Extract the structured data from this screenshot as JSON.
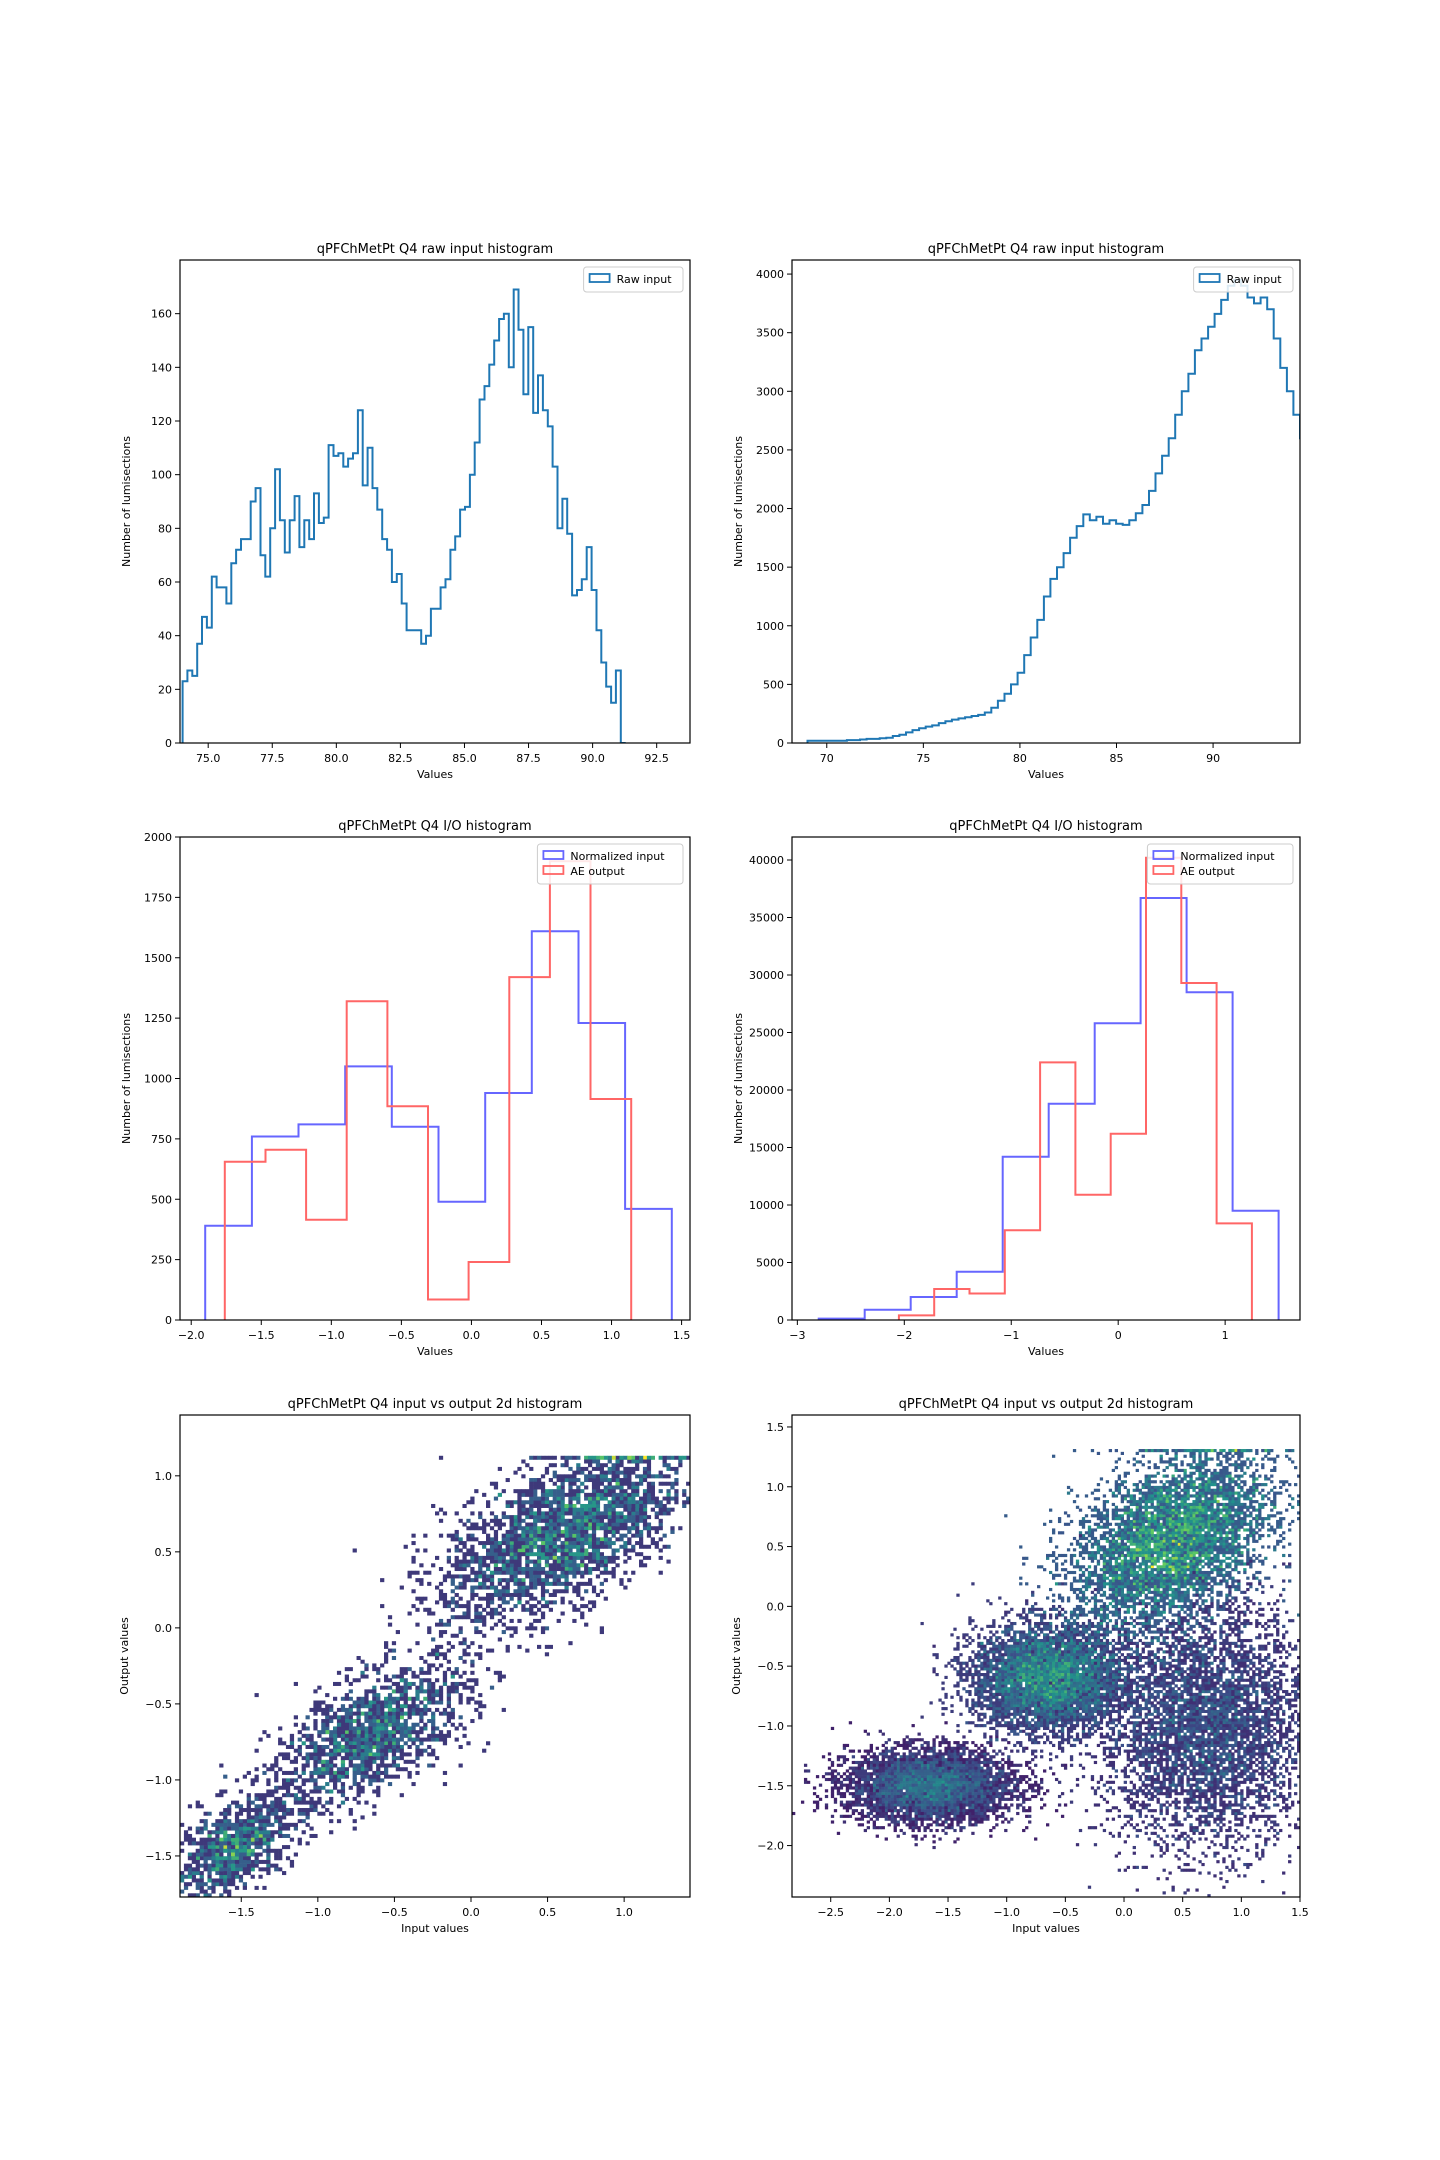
{
  "chart_data": [
    {
      "type": "histogram-step",
      "title": "qPFChMetPt Q4 raw input histogram",
      "xlabel": "Values",
      "ylabel": "Number of lumisections",
      "xlim": [
        73.9,
        93.8
      ],
      "ylim": [
        0,
        180
      ],
      "xticks": [
        75.0,
        77.5,
        80.0,
        82.5,
        85.0,
        87.5,
        90.0,
        92.5
      ],
      "xtick_labels": [
        "75.0",
        "77.5",
        "80.0",
        "82.5",
        "85.0",
        "87.5",
        "90.0",
        "92.5"
      ],
      "yticks": [
        0,
        20,
        40,
        60,
        80,
        100,
        120,
        140,
        160
      ],
      "legend_position": "upper right",
      "series": [
        {
          "name": "Raw input",
          "color": "#1f77b4",
          "bin_start": 74.0,
          "bin_width": 0.19,
          "values": [
            23,
            27,
            25,
            37,
            47,
            43,
            62,
            58,
            58,
            52,
            67,
            72,
            76,
            76,
            90,
            95,
            70,
            62,
            80,
            102,
            83,
            71,
            83,
            92,
            73,
            83,
            76,
            93,
            82,
            84,
            111,
            107,
            108,
            103,
            106,
            108,
            124,
            96,
            110,
            95,
            87,
            76,
            72,
            60,
            63,
            52,
            42,
            42,
            42,
            37,
            40,
            50,
            50,
            58,
            61,
            72,
            77,
            87,
            88,
            100,
            112,
            128,
            133,
            141,
            150,
            158,
            160,
            140,
            169,
            154,
            130,
            155,
            123,
            137,
            124,
            118,
            103,
            80,
            91,
            78,
            55,
            57,
            61,
            73,
            57,
            42,
            30,
            21,
            15,
            27,
            0
          ]
        }
      ]
    },
    {
      "type": "histogram-step",
      "title": "qPFChMetPt Q4 raw input histogram",
      "xlabel": "Values",
      "ylabel": "Number of lumisections",
      "xlim": [
        68.2,
        94.5
      ],
      "ylim": [
        0,
        4120
      ],
      "xticks": [
        70,
        75,
        80,
        85,
        90
      ],
      "xtick_labels": [
        "70",
        "75",
        "80",
        "85",
        "90"
      ],
      "yticks": [
        0,
        500,
        1000,
        1500,
        2000,
        2500,
        3000,
        3500,
        4000
      ],
      "legend_position": "upper right",
      "series": [
        {
          "name": "Raw input",
          "color": "#1f77b4",
          "bin_start": 69.0,
          "bin_width": 0.34,
          "values": [
            20,
            20,
            20,
            20,
            20,
            20,
            25,
            25,
            30,
            35,
            35,
            40,
            45,
            60,
            70,
            90,
            110,
            125,
            140,
            150,
            170,
            185,
            200,
            210,
            220,
            230,
            240,
            260,
            300,
            360,
            420,
            500,
            600,
            750,
            900,
            1050,
            1250,
            1400,
            1500,
            1620,
            1750,
            1850,
            1950,
            1900,
            1930,
            1870,
            1900,
            1870,
            1860,
            1900,
            1960,
            2030,
            2150,
            2300,
            2450,
            2600,
            2800,
            3000,
            3150,
            3350,
            3450,
            3550,
            3660,
            3780,
            3900,
            3950,
            3900,
            3800,
            3750,
            3800,
            3700,
            3450,
            3200,
            3000,
            2800,
            2600,
            2250,
            2100,
            1880,
            1650,
            1350,
            1170,
            1000,
            800,
            650,
            520,
            390,
            0
          ]
        }
      ]
    },
    {
      "type": "histogram-step",
      "title": "qPFChMetPt Q4 I/O histogram",
      "xlabel": "Values",
      "ylabel": "Number of lumisections",
      "xlim": [
        -2.08,
        1.56
      ],
      "ylim": [
        0,
        2000
      ],
      "xticks": [
        -2.0,
        -1.5,
        -1.0,
        -0.5,
        0.0,
        0.5,
        1.0,
        1.5
      ],
      "xtick_labels": [
        "−2.0",
        "−1.5",
        "−1.0",
        "−0.5",
        "0.0",
        "0.5",
        "1.0",
        "1.5"
      ],
      "yticks": [
        0,
        250,
        500,
        750,
        1000,
        1250,
        1500,
        1750,
        2000
      ],
      "legend_position": "upper right",
      "series": [
        {
          "name": "Normalized input",
          "color": "#6666ff",
          "edges": [
            -1.9,
            -1.567,
            -1.234,
            -0.901,
            -0.568,
            -0.235,
            0.098,
            0.431,
            0.764,
            1.097,
            1.43
          ],
          "values": [
            390,
            760,
            810,
            1050,
            800,
            490,
            940,
            1610,
            1230,
            460
          ]
        },
        {
          "name": "AE output",
          "color": "#ff6666",
          "edges": [
            -1.76,
            -1.47,
            -1.18,
            -0.89,
            -0.6,
            -0.31,
            -0.02,
            0.27,
            0.56,
            0.85,
            1.14
          ],
          "values": [
            655,
            705,
            415,
            1320,
            885,
            85,
            240,
            1420,
            1900,
            915
          ]
        }
      ]
    },
    {
      "type": "histogram-step",
      "title": "qPFChMetPt Q4 I/O histogram",
      "xlabel": "Values",
      "ylabel": "Number of lumisections",
      "xlim": [
        -3.05,
        1.7
      ],
      "ylim": [
        0,
        42000
      ],
      "xticks": [
        -3,
        -2,
        -1,
        0,
        1
      ],
      "xtick_labels": [
        "−3",
        "−2",
        "−1",
        "0",
        "1"
      ],
      "yticks": [
        0,
        5000,
        10000,
        15000,
        20000,
        25000,
        30000,
        35000,
        40000
      ],
      "legend_position": "upper right",
      "series": [
        {
          "name": "Normalized input",
          "color": "#6666ff",
          "edges": [
            -2.8,
            -2.37,
            -1.94,
            -1.51,
            -1.08,
            -0.65,
            -0.22,
            0.21,
            0.64,
            1.07,
            1.5
          ],
          "values": [
            120,
            900,
            2000,
            4200,
            14200,
            18800,
            25800,
            36700,
            28500,
            9500
          ]
        },
        {
          "name": "AE output",
          "color": "#ff6666",
          "edges": [
            -2.05,
            -1.72,
            -1.39,
            -1.06,
            -0.73,
            -0.4,
            -0.07,
            0.26,
            0.59,
            0.92,
            1.25
          ],
          "values": [
            400,
            2700,
            2300,
            7800,
            22400,
            10900,
            16200,
            40200,
            29300,
            8400
          ]
        }
      ]
    },
    {
      "type": "heatmap",
      "title": "qPFChMetPt Q4 input vs output 2d histogram",
      "xlabel": "Input values",
      "ylabel": "Output values",
      "xlim": [
        -1.9,
        1.43
      ],
      "ylim": [
        -1.77,
        1.4
      ],
      "xticks": [
        -1.5,
        -1.0,
        -0.5,
        0.0,
        0.5,
        1.0
      ],
      "xtick_labels": [
        "−1.5",
        "−1.0",
        "−0.5",
        "0.0",
        "0.5",
        "1.0"
      ],
      "yticks": [
        -1.5,
        -1.0,
        -0.5,
        0.0,
        0.5,
        1.0
      ],
      "ytick_labels": [
        "−1.5",
        "−1.0",
        "−0.5",
        "0.0",
        "0.5",
        "1.0"
      ],
      "colormap": "viridis",
      "clusters": [
        {
          "x": -1.55,
          "y": -1.45,
          "sx": 0.2,
          "sy": 0.14,
          "weight": 0.18
        },
        {
          "x": -0.65,
          "y": -0.7,
          "sx": 0.32,
          "sy": 0.19,
          "weight": 0.3
        },
        {
          "x": 0.6,
          "y": 0.62,
          "sx": 0.4,
          "sy": 0.24,
          "weight": 0.52
        }
      ]
    },
    {
      "type": "heatmap",
      "title": "qPFChMetPt Q4 input vs output 2d histogram",
      "xlabel": "Input values",
      "ylabel": "Output values",
      "xlim": [
        -2.83,
        1.5
      ],
      "ylim": [
        -2.43,
        1.6
      ],
      "xticks": [
        -2.5,
        -2.0,
        -1.5,
        -1.0,
        -0.5,
        0.0,
        0.5,
        1.0,
        1.5
      ],
      "xtick_labels": [
        "−2.5",
        "−2.0",
        "−1.5",
        "−1.0",
        "−0.5",
        "0.0",
        "0.5",
        "1.0",
        "1.5"
      ],
      "yticks": [
        -2.0,
        -1.5,
        -1.0,
        -0.5,
        0.0,
        0.5,
        1.0,
        1.5
      ],
      "ytick_labels": [
        "−2.0",
        "−1.5",
        "−1.0",
        "−0.5",
        "0.0",
        "0.5",
        "1.0",
        "1.5"
      ],
      "colormap": "viridis",
      "clusters": [
        {
          "x": -1.65,
          "y": -1.5,
          "sx": 0.35,
          "sy": 0.15,
          "weight": 0.1
        },
        {
          "x": -0.65,
          "y": -0.6,
          "sx": 0.32,
          "sy": 0.22,
          "weight": 0.22
        },
        {
          "x": 0.4,
          "y": 0.55,
          "sx": 0.42,
          "sy": 0.33,
          "weight": 0.5
        },
        {
          "x": 0.7,
          "y": -1.0,
          "sx": 0.45,
          "sy": 0.5,
          "weight": 0.18
        }
      ]
    }
  ]
}
